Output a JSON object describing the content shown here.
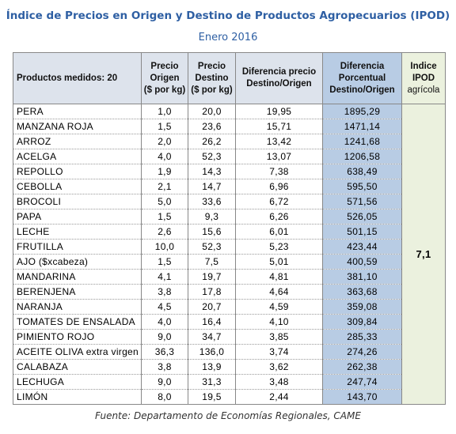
{
  "header": {
    "title": "Índice de Precios en Origen y Destino de Productos Agropecuarios (IPOD)",
    "subtitle": "Enero 2016"
  },
  "table": {
    "columns": [
      [
        "Productos medidos: 20"
      ],
      [
        "Precio",
        "Origen",
        "($ por kg)"
      ],
      [
        "Precio",
        "Destino",
        "($ por kg)"
      ],
      [
        "Diferencia precio",
        "Destino/Origen"
      ],
      [
        "Diferencia",
        "Porcentual",
        "Destino/Origen"
      ],
      [
        "Indice",
        "IPOD",
        "agrícola"
      ]
    ],
    "rows": [
      [
        "PERA",
        "1,0",
        "20,0",
        "19,95",
        "1895,29"
      ],
      [
        "MANZANA ROJA",
        "1,5",
        "23,6",
        "15,71",
        "1471,14"
      ],
      [
        "ARROZ",
        "2,0",
        "26,2",
        "13,42",
        "1241,68"
      ],
      [
        "ACELGA",
        "4,0",
        "52,3",
        "13,07",
        "1206,58"
      ],
      [
        "REPOLLO",
        "1,9",
        "14,3",
        "7,38",
        "638,49"
      ],
      [
        "CEBOLLA",
        "2,1",
        "14,7",
        "6,96",
        "595,50"
      ],
      [
        "BROCOLI",
        "5,0",
        "33,6",
        "6,72",
        "571,56"
      ],
      [
        "PAPA",
        "1,5",
        "9,3",
        "6,26",
        "526,05"
      ],
      [
        "LECHE",
        "2,6",
        "15,6",
        "6,01",
        "501,15"
      ],
      [
        "FRUTILLA",
        "10,0",
        "52,3",
        "5,23",
        "423,44"
      ],
      [
        "AJO ($xcabeza)",
        "1,5",
        "7,5",
        "5,01",
        "400,59"
      ],
      [
        "MANDARINA",
        "4,1",
        "19,7",
        "4,81",
        "381,10"
      ],
      [
        "BERENJENA",
        "3,8",
        "17,8",
        "4,64",
        "363,68"
      ],
      [
        "NARANJA",
        "4,5",
        "20,7",
        "4,59",
        "359,08"
      ],
      [
        "TOMATES DE ENSALADA",
        "4,0",
        "16,4",
        "4,10",
        "309,84"
      ],
      [
        "PIMIENTO ROJO",
        "9,0",
        "34,7",
        "3,85",
        "285,33"
      ],
      [
        "ACEITE OLIVA extra virgen",
        "36,3",
        "136,0",
        "3,74",
        "274,26"
      ],
      [
        "CALABAZA",
        "3,8",
        "13,9",
        "3,62",
        "262,38"
      ],
      [
        "LECHUGA",
        "9,0",
        "31,3",
        "3,48",
        "247,74"
      ],
      [
        "LIMÓN",
        "8,0",
        "19,5",
        "2,44",
        "143,70"
      ]
    ],
    "ipod": "7,1"
  },
  "footer": {
    "source": "Fuente: Departamento de Economías Regionales, CAME"
  }
}
